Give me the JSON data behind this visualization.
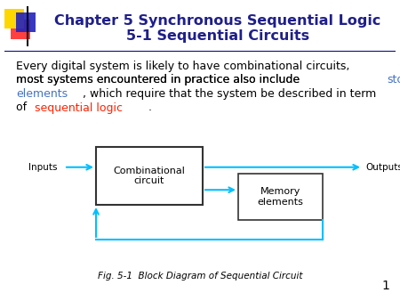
{
  "title_line1": "Chapter 5 Synchronous Sequential Logic",
  "title_line2": "5-1 Sequential Circuits",
  "title_color": "#1F1F8B",
  "title_fontsize": 11.5,
  "body_fontsize": 9.0,
  "fig_caption": "Fig. 5-1  Block Diagram of Sequential Circuit",
  "page_number": "1",
  "background_color": "#FFFFFF",
  "box_color": "#000000",
  "arrow_color": "#00BFFF",
  "combinational_label": "Combinational\ncircuit",
  "memory_label": "Memory\nelements",
  "inputs_label": "Inputs",
  "outputs_label": "Outputs",
  "storage_color": "#4472C4",
  "sequential_color": "#FF2200",
  "divider_color": "#000080",
  "logo_yellow": "#FFD700",
  "logo_red": "#FF4040",
  "logo_blue": "#2222BB"
}
